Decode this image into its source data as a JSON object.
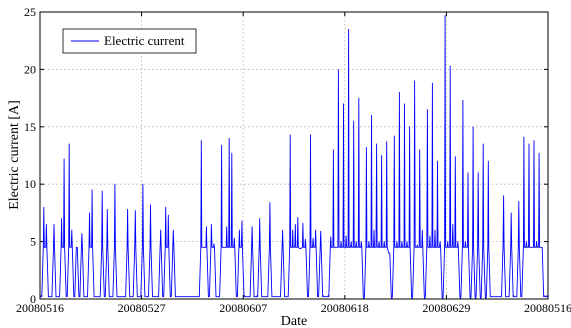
{
  "chart_data": {
    "type": "line",
    "xlabel": "Date",
    "ylabel": "Electric current [A]",
    "ylim": [
      0,
      25
    ],
    "yticks": [
      0,
      5,
      10,
      15,
      20,
      25
    ],
    "x_ticks": [
      "20080516",
      "20080527",
      "20080607",
      "20080618",
      "20080629",
      "20080516"
    ],
    "grid": true,
    "legend_position": "top-left",
    "series": [
      {
        "name": "Electric current",
        "color": "#0000ff",
        "values": [
          0.3,
          8.0,
          6.5,
          0.2,
          0.2,
          6.5,
          0.2,
          0.2,
          7.0,
          12.2,
          0.3,
          13.5,
          6.0,
          0.2,
          4.5,
          0.2,
          5.7,
          0.2,
          0.2,
          7.5,
          9.5,
          0.2,
          0.2,
          0.2,
          9.4,
          0.2,
          7.8,
          0.2,
          0.2,
          10.0,
          0.2,
          0.2,
          0.2,
          0.2,
          7.8,
          0.2,
          0.2,
          7.7,
          0.2,
          0.2,
          10.0,
          0.2,
          0.2,
          8.2,
          0.2,
          0.2,
          0.2,
          6.0,
          0.2,
          8.0,
          7.3,
          0.2,
          6.0,
          0.2,
          0.2,
          0.2,
          0.2,
          0.2,
          0.2,
          0.2,
          0.2,
          0.2,
          0.2,
          13.8,
          4.5,
          6.3,
          0.2,
          6.5,
          4.8,
          0.2,
          0.2,
          13.4,
          4.5,
          6.3,
          14.0,
          12.7,
          5.3,
          0.3,
          6.0,
          6.8,
          0.3,
          0.2,
          0.2,
          6.3,
          0.2,
          0.3,
          7.0,
          0.2,
          0.2,
          0.2,
          8.4,
          0.2,
          0.2,
          0.2,
          0.2,
          6.0,
          0.2,
          0.2,
          14.3,
          6.0,
          6.5,
          7.1,
          4.4,
          6.6,
          5.2,
          0.2,
          14.3,
          5.3,
          6.0,
          0.2,
          5.9,
          0.3,
          0.2,
          0.3,
          5.4,
          13.0,
          4.5,
          20.0,
          5.0,
          17.0,
          5.5,
          23.5,
          5.0,
          15.5,
          5.0,
          17.5,
          5.0,
          0.0,
          13.2,
          5.0,
          16.0,
          6.0,
          13.5,
          5.0,
          12.5,
          5.0,
          13.7,
          4.0,
          0.0,
          14.2,
          5.0,
          18.0,
          5.0,
          17.0,
          5.0,
          15.0,
          0.0,
          19.0,
          4.7,
          13.0,
          6.0,
          0.0,
          16.5,
          5.5,
          18.8,
          6.0,
          12.0,
          5.0,
          0.0,
          24.7,
          5.0,
          20.3,
          6.5,
          12.4,
          5.0,
          0.0,
          17.3,
          5.0,
          11.0,
          0.0,
          15.0,
          0.0,
          11.0,
          0.0,
          13.5,
          0.0,
          12.0,
          0.2,
          0.2,
          0.2,
          0.2,
          0.2,
          9.0,
          0.2,
          0.2,
          7.5,
          0.3,
          0.2,
          8.5,
          0.2,
          14.1,
          5.0,
          13.5,
          4.5,
          13.8,
          5.0,
          12.7,
          4.5,
          0.3,
          0.3
        ]
      }
    ]
  }
}
